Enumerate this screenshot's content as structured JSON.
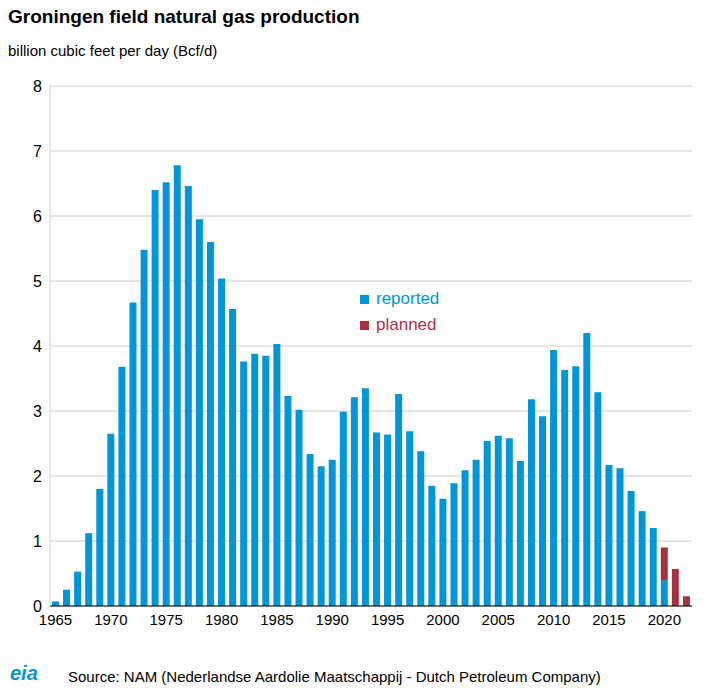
{
  "chart_data": {
    "type": "bar",
    "title": "Groningen field natural gas production",
    "subtitle": "billion cubic feet per day (Bcf/d)",
    "source": "Source: NAM (Nederlandse Aardolie Maatschappij - Dutch Petroleum Company)",
    "logo": "eia",
    "categories": [
      "1965",
      null,
      null,
      null,
      null,
      "1970",
      null,
      null,
      null,
      null,
      "1975",
      null,
      null,
      null,
      null,
      "1980",
      null,
      null,
      null,
      null,
      "1985",
      null,
      null,
      null,
      null,
      "1990",
      null,
      null,
      null,
      null,
      "1995",
      null,
      null,
      null,
      null,
      "2000",
      null,
      null,
      null,
      null,
      "2005",
      null,
      null,
      null,
      null,
      "2010",
      null,
      null,
      null,
      null,
      "2015",
      null,
      null,
      null,
      null,
      "2020",
      null,
      null
    ],
    "series": [
      {
        "name": "reported",
        "color": "#0096d7",
        "values": [
          0.07,
          0.25,
          0.53,
          1.12,
          1.8,
          2.65,
          3.68,
          4.67,
          5.48,
          6.4,
          6.52,
          6.78,
          6.46,
          5.95,
          5.6,
          5.04,
          4.57,
          3.76,
          3.88,
          3.85,
          4.03,
          3.23,
          3.02,
          2.34,
          2.15,
          2.25,
          2.99,
          3.21,
          3.35,
          2.67,
          2.64,
          3.26,
          2.69,
          2.38,
          1.85,
          1.65,
          1.89,
          2.09,
          2.25,
          2.54,
          2.62,
          2.58,
          2.23,
          3.18,
          2.92,
          3.94,
          3.63,
          3.69,
          4.2,
          3.29,
          2.17,
          2.12,
          1.77,
          1.46,
          1.2,
          0.4,
          null,
          null
        ]
      },
      {
        "name": "planned",
        "color": "#a33340",
        "values": [
          null,
          null,
          null,
          null,
          null,
          null,
          null,
          null,
          null,
          null,
          null,
          null,
          null,
          null,
          null,
          null,
          null,
          null,
          null,
          null,
          null,
          null,
          null,
          null,
          null,
          null,
          null,
          null,
          null,
          null,
          null,
          null,
          null,
          null,
          null,
          null,
          null,
          null,
          null,
          null,
          null,
          null,
          null,
          null,
          null,
          null,
          null,
          null,
          null,
          null,
          null,
          null,
          null,
          null,
          null,
          0.5,
          0.57,
          0.15
        ]
      }
    ],
    "stacked": true,
    "ylim": [
      0,
      8
    ],
    "yticks": [
      0,
      1,
      2,
      3,
      4,
      5,
      6,
      7,
      8
    ],
    "grid": true
  }
}
